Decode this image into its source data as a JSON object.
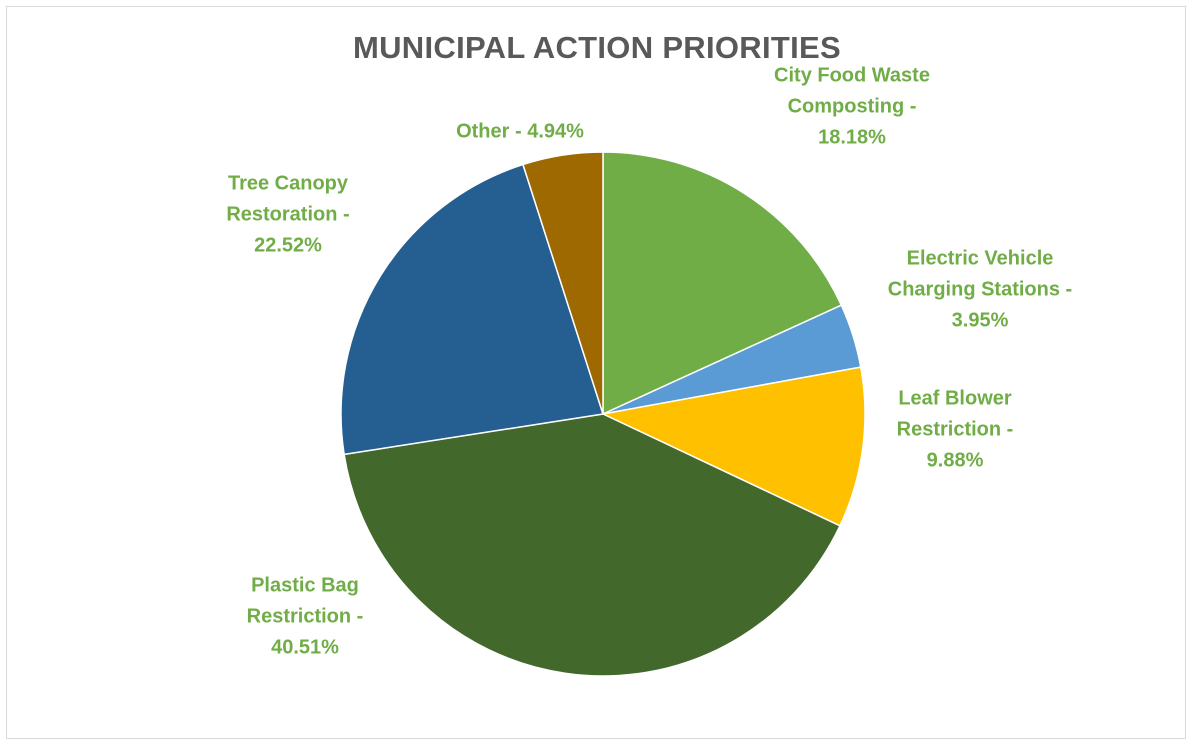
{
  "chart_data": {
    "type": "pie",
    "title": "MUNICIPAL ACTION PRIORITIES",
    "label_color": "#70ad47",
    "slices": [
      {
        "name": "City Food Waste Composting",
        "value": 18.18,
        "color": "#70ad47",
        "label_lines": [
          "City Food Waste",
          "Composting -",
          "18.18%"
        ]
      },
      {
        "name": "Electric Vehicle Charging Stations",
        "value": 3.95,
        "color": "#5b9bd5",
        "label_lines": [
          "Electric Vehicle",
          "Charging Stations -",
          "3.95%"
        ]
      },
      {
        "name": "Leaf Blower Restriction",
        "value": 9.88,
        "color": "#ffc000",
        "label_lines": [
          "Leaf Blower",
          "Restriction -",
          "9.88%"
        ]
      },
      {
        "name": "Plastic Bag Restriction",
        "value": 40.51,
        "color": "#43682b",
        "label_lines": [
          "Plastic Bag",
          "Restriction -",
          "40.51%"
        ]
      },
      {
        "name": "Tree Canopy Restoration",
        "value": 22.52,
        "color": "#255e91",
        "label_lines": [
          "Tree Canopy",
          "Restoration -",
          "22.52%"
        ]
      },
      {
        "name": "Other",
        "value": 4.94,
        "color": "#9e6900",
        "label_lines": [
          "Other - 4.94%"
        ]
      }
    ]
  }
}
